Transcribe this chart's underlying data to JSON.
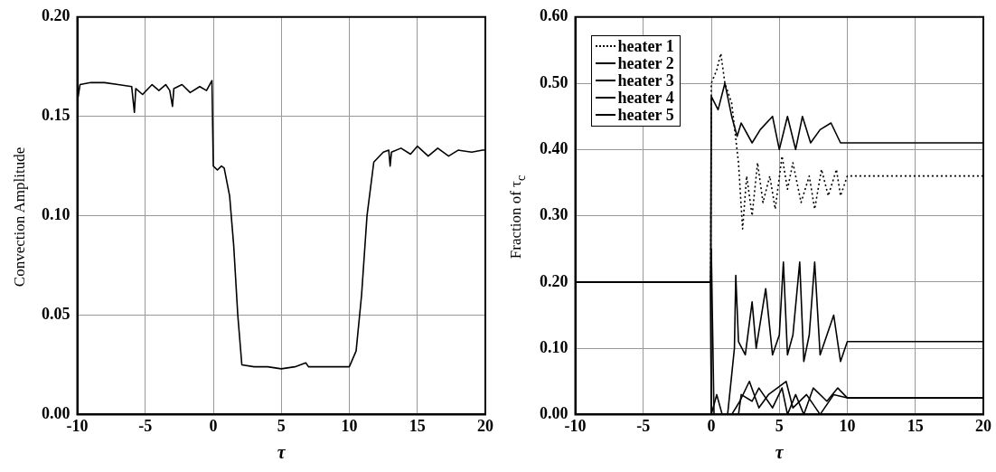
{
  "chart_data": [
    {
      "type": "line",
      "xlabel": "τ",
      "ylabel": "Convection Amplitude",
      "xlim": [
        -10,
        20
      ],
      "ylim": [
        0,
        0.2
      ],
      "xticks": [
        -10,
        -5,
        0,
        5,
        10,
        15,
        20
      ],
      "yticks": [
        {
          "value": 0,
          "label": "0.00"
        },
        {
          "value": 0.05,
          "label": "0.05"
        },
        {
          "value": 0.1,
          "label": "0.10"
        },
        {
          "value": 0.15,
          "label": "0.15"
        },
        {
          "value": 0.2,
          "label": "0.20"
        }
      ],
      "grid": true,
      "line_style": "solid",
      "series": [
        {
          "color": "#000000",
          "x": [
            -10,
            -9.8,
            -9,
            -8,
            -7,
            -6,
            -5.8,
            -5.7,
            -5.2,
            -4.5,
            -4,
            -3.5,
            -3.2,
            -3,
            -2.9,
            -2.3,
            -1.7,
            -1,
            -0.5,
            -0.1,
            0,
            0.3,
            0.6,
            0.8,
            1.2,
            1.5,
            1.8,
            2.1,
            3,
            4,
            5,
            6,
            6.8,
            7,
            8,
            9,
            10,
            10.5,
            10.9,
            11.3,
            11.8,
            12.5,
            12.9,
            13,
            13.1,
            13.8,
            14.5,
            15,
            15.8,
            16.5,
            17.3,
            18,
            19,
            19.8,
            20
          ],
          "values": [
            0.157,
            0.166,
            0.167,
            0.167,
            0.166,
            0.165,
            0.152,
            0.164,
            0.161,
            0.166,
            0.163,
            0.166,
            0.163,
            0.155,
            0.164,
            0.166,
            0.162,
            0.165,
            0.163,
            0.168,
            0.125,
            0.123,
            0.125,
            0.124,
            0.11,
            0.085,
            0.05,
            0.025,
            0.024,
            0.024,
            0.023,
            0.024,
            0.026,
            0.024,
            0.024,
            0.024,
            0.024,
            0.032,
            0.06,
            0.1,
            0.127,
            0.132,
            0.133,
            0.125,
            0.132,
            0.134,
            0.131,
            0.135,
            0.13,
            0.134,
            0.13,
            0.133,
            0.132,
            0.133,
            0.133
          ]
        }
      ]
    },
    {
      "type": "line",
      "xlabel": "τ",
      "ylabel": "Fraction of τ$_{c}$",
      "xlim": [
        -10,
        20
      ],
      "ylim": [
        0,
        0.6
      ],
      "xticks": [
        -10,
        -5,
        0,
        5,
        10,
        15,
        20
      ],
      "yticks": [
        {
          "value": 0,
          "label": "0.00"
        },
        {
          "value": 0.1,
          "label": "0.10"
        },
        {
          "value": 0.2,
          "label": "0.20"
        },
        {
          "value": 0.3,
          "label": "0.30"
        },
        {
          "value": 0.4,
          "label": "0.40"
        },
        {
          "value": 0.5,
          "label": "0.50"
        },
        {
          "value": 0.6,
          "label": "0.60"
        }
      ],
      "grid": true,
      "legend": "top left",
      "series": [
        {
          "name": "heater 1",
          "color": "#000000",
          "line_style": "dotted",
          "x": [
            -10,
            -0.05,
            0,
            0.4,
            0.7,
            1,
            1.5,
            2,
            2.3,
            2.6,
            3,
            3.4,
            3.8,
            4.3,
            4.7,
            5.2,
            5.6,
            6,
            6.6,
            7.2,
            7.6,
            8.1,
            8.6,
            9.2,
            9.5,
            10,
            20
          ],
          "values": [
            0.2,
            0.2,
            0.5,
            0.52,
            0.545,
            0.5,
            0.47,
            0.38,
            0.28,
            0.36,
            0.3,
            0.38,
            0.32,
            0.36,
            0.31,
            0.39,
            0.34,
            0.38,
            0.32,
            0.36,
            0.31,
            0.37,
            0.33,
            0.37,
            0.33,
            0.36,
            0.36
          ]
        },
        {
          "name": "heater 2",
          "color": "#000000",
          "line_style": "solid",
          "x": [
            -10,
            -0.05,
            0,
            0.5,
            1,
            1.5,
            1.9,
            2.2,
            3,
            3.6,
            4.5,
            5,
            5.6,
            6.2,
            6.7,
            7.3,
            8,
            8.8,
            9.5,
            10,
            20
          ],
          "values": [
            0.2,
            0.2,
            0.48,
            0.46,
            0.5,
            0.45,
            0.42,
            0.44,
            0.41,
            0.43,
            0.45,
            0.4,
            0.45,
            0.4,
            0.45,
            0.41,
            0.43,
            0.44,
            0.41,
            0.41,
            0.41
          ]
        },
        {
          "name": "heater 3",
          "color": "#000000",
          "line_style": "solid",
          "x": [
            -10,
            -0.05,
            0,
            1.2,
            1.7,
            1.8,
            2,
            2.5,
            3,
            3.3,
            4,
            4.5,
            5,
            5.3,
            5.6,
            6,
            6.5,
            6.8,
            7.2,
            7.6,
            8,
            8.5,
            9,
            9.5,
            10,
            20
          ],
          "values": [
            0.2,
            0.2,
            0,
            0,
            0.1,
            0.21,
            0.11,
            0.09,
            0.17,
            0.1,
            0.19,
            0.09,
            0.12,
            0.23,
            0.09,
            0.12,
            0.23,
            0.08,
            0.12,
            0.23,
            0.09,
            0.12,
            0.15,
            0.08,
            0.11,
            0.11
          ]
        },
        {
          "name": "heater 4",
          "color": "#000000",
          "line_style": "solid",
          "x": [
            -10,
            -0.05,
            0,
            0.4,
            0.8,
            2,
            2.2,
            3,
            3.5,
            4.5,
            5.2,
            5.6,
            6.2,
            6.8,
            7.5,
            8.5,
            9.3,
            10,
            20
          ],
          "values": [
            0.2,
            0.2,
            0,
            0.03,
            0,
            0,
            0.03,
            0.02,
            0.04,
            0.01,
            0.04,
            0,
            0.03,
            0,
            0.04,
            0.02,
            0.04,
            0.025,
            0.025
          ]
        },
        {
          "name": "heater 5",
          "color": "#000000",
          "line_style": "solid",
          "x": [
            -10,
            -0.05,
            0,
            0.2,
            1.5,
            2.1,
            2.8,
            3.5,
            4.2,
            5.5,
            6,
            7,
            8,
            9,
            10,
            20
          ],
          "values": [
            0.2,
            0.2,
            0.25,
            0,
            0,
            0.02,
            0.05,
            0.01,
            0.03,
            0.05,
            0.01,
            0.03,
            0,
            0.03,
            0.025,
            0.025
          ]
        }
      ]
    }
  ]
}
